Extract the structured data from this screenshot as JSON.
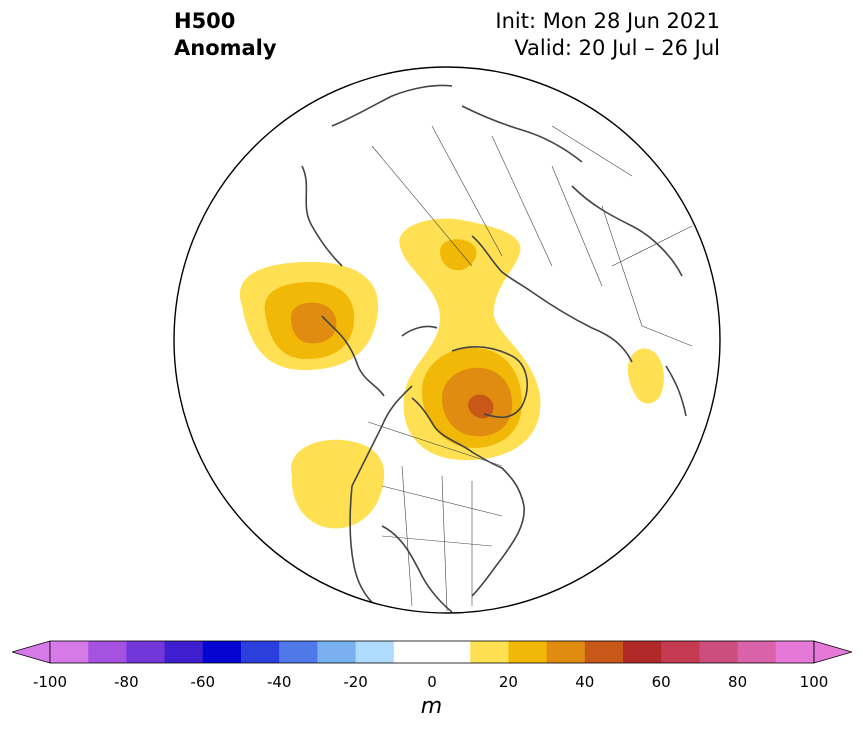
{
  "title": {
    "line1": "H500",
    "line2": "Anomaly"
  },
  "info": {
    "init": "Init: Mon 28 Jun 2021",
    "valid": "Valid: 20 Jul – 26 Jul"
  },
  "map": {
    "projection": "north-polar-stereographic",
    "region": "North America / Arctic / Europe",
    "anomalies": [
      {
        "name": "Gulf of Alaska / NE Pacific ridge",
        "peak_m": 30,
        "max_level": "20 to 30"
      },
      {
        "name": "Greenland / Canadian Arctic ridge",
        "peak_m": 50,
        "max_level": "40 to 50"
      },
      {
        "name": "Scandinavia / Barents ridge",
        "peak_m": 20,
        "max_level": "10 to 20"
      },
      {
        "name": "US Pacific Northwest ridge",
        "peak_m": 20,
        "max_level": "10 to 20"
      },
      {
        "name": "Western Europe ridge",
        "peak_m": 20,
        "max_level": "10 to 20"
      }
    ]
  },
  "colorbar": {
    "units": "m",
    "ticks": [
      "-100",
      "-80",
      "-60",
      "-40",
      "-20",
      "0",
      "20",
      "40",
      "60",
      "80",
      "100"
    ],
    "colors": [
      "#d67ae8",
      "#a652e0",
      "#7236d9",
      "#3e1fd0",
      "#0505d3",
      "#2a3fdb",
      "#4f78e8",
      "#78b0f0",
      "#aedcff",
      "#ffffff",
      "#ffffff",
      "#ffe052",
      "#f2b808",
      "#df8c10",
      "#c85818",
      "#b02828",
      "#c43a50",
      "#cc4e7e",
      "#d962a8",
      "#e678d8"
    ],
    "extend_low_color": "#d67ae8",
    "extend_high_color": "#e678d8"
  }
}
